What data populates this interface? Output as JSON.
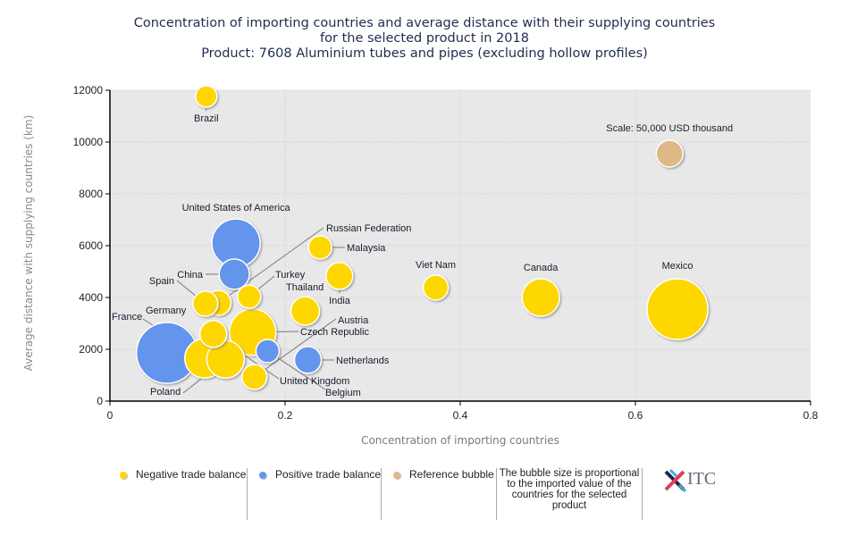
{
  "header": {
    "title_lines": [
      "Concentration of importing countries and average distance with their supplying countries",
      "for the selected product in 2018",
      "Product: 7608 Aluminium tubes and pipes (excluding hollow profiles)"
    ]
  },
  "colors": {
    "negative": "#FFD700",
    "positive": "#6495ED",
    "reference": "#DEB887",
    "plot_bg": "#E8E8E8"
  },
  "legend": {
    "negative_label": "Negative trade balance",
    "positive_label": "Positive trade balance",
    "reference_label": "Reference bubble",
    "note": "The bubble size is proportional to the imported value of the countries for the selected product",
    "logo_text": "ITC"
  },
  "chart_data": {
    "type": "scatter",
    "subtype": "bubble",
    "title": "Concentration of importing countries and average distance with their supplying countries for the selected product in 2018 — Product: 7608 Aluminium tubes and pipes (excluding hollow profiles)",
    "xlabel": "Concentration of importing countries",
    "ylabel": "Average distance with supplying countries (km)",
    "xlim": [
      0,
      0.8
    ],
    "ylim": [
      0,
      12000
    ],
    "xticks": [
      "0",
      "0.2",
      "0.4",
      "0.6",
      "0.8"
    ],
    "xtick_values": [
      0,
      0.2,
      0.4,
      0.6,
      0.8
    ],
    "yticks": [
      "0",
      "2000",
      "4000",
      "6000",
      "8000",
      "10000",
      "12000"
    ],
    "ytick_values": [
      0,
      2000,
      4000,
      6000,
      8000,
      10000,
      12000
    ],
    "grid": true,
    "legend_position": "bottom",
    "size_unit": "USD thousand (imported value, estimated from bubble area)",
    "reference": {
      "label": "Scale: 50,000 USD thousand",
      "x": 0.639,
      "y": 9550,
      "size": 50000
    },
    "points": [
      {
        "name": "Brazil",
        "x": 0.11,
        "y": 11760,
        "size": 32000,
        "balance": "negative",
        "label": "Brazil",
        "label_pos": "below"
      },
      {
        "name": "United States of America",
        "x": 0.144,
        "y": 6100,
        "size": 162000,
        "balance": "positive",
        "label": "United States of America",
        "label_pos": "above"
      },
      {
        "name": "China",
        "x": 0.142,
        "y": 4900,
        "size": 64000,
        "balance": "positive",
        "label": "China",
        "label_pos": "left-leader"
      },
      {
        "name": "Russian Federation",
        "x": 0.124,
        "y": 3790,
        "size": 43500,
        "balance": "negative",
        "label": "Russian Federation",
        "label_pos": "leader"
      },
      {
        "name": "Spain",
        "x": 0.109,
        "y": 3760,
        "size": 43500,
        "balance": "negative",
        "label": "Spain",
        "label_pos": "leader"
      },
      {
        "name": "Turkey",
        "x": 0.159,
        "y": 4030,
        "size": 37600,
        "balance": "negative",
        "label": "Turkey",
        "label_pos": "leader"
      },
      {
        "name": "Malaysia",
        "x": 0.24,
        "y": 5930,
        "size": 37600,
        "balance": "negative",
        "label": "Malaysia",
        "label_pos": "right-leader"
      },
      {
        "name": "India",
        "x": 0.262,
        "y": 4830,
        "size": 50000,
        "balance": "negative",
        "label": "India",
        "label_pos": "below-leader"
      },
      {
        "name": "Thailand",
        "x": 0.223,
        "y": 3480,
        "size": 57000,
        "balance": "negative",
        "label": "Thailand",
        "label_pos": "above"
      },
      {
        "name": "Viet Nam",
        "x": 0.372,
        "y": 4380,
        "size": 43500,
        "balance": "negative",
        "label": "Viet Nam",
        "label_pos": "above"
      },
      {
        "name": "Canada",
        "x": 0.492,
        "y": 4000,
        "size": 98000,
        "balance": "negative",
        "label": "Canada",
        "label_pos": "above"
      },
      {
        "name": "Mexico",
        "x": 0.648,
        "y": 3550,
        "size": 257000,
        "balance": "negative",
        "label": "Mexico",
        "label_pos": "above"
      },
      {
        "name": "Czech Republic",
        "x": 0.163,
        "y": 2660,
        "size": 150000,
        "balance": "negative",
        "label": "Czech Republic",
        "label_pos": "right-leader"
      },
      {
        "name": "Germany",
        "x": 0.065,
        "y": 1860,
        "size": 257000,
        "balance": "positive",
        "label": "Germany",
        "label_pos": "above"
      },
      {
        "name": "United Kingdom",
        "x": 0.118,
        "y": 2590,
        "size": 50000,
        "balance": "negative",
        "label": "United Kingdom",
        "label_pos": "leader"
      },
      {
        "name": "France",
        "x": 0.108,
        "y": 1650,
        "size": 108000,
        "balance": "negative",
        "label": "France",
        "label_pos": "leader"
      },
      {
        "name": "Poland",
        "x": 0.132,
        "y": 1610,
        "size": 98000,
        "balance": "negative",
        "label": "Poland",
        "label_pos": "leader"
      },
      {
        "name": "Belgium",
        "x": 0.18,
        "y": 1930,
        "size": 37600,
        "balance": "positive",
        "label": "Belgium",
        "label_pos": "leader"
      },
      {
        "name": "Austria",
        "x": 0.165,
        "y": 930,
        "size": 43500,
        "balance": "negative",
        "label": "Austria",
        "label_pos": "leader"
      },
      {
        "name": "Netherlands",
        "x": 0.226,
        "y": 1590,
        "size": 50000,
        "balance": "positive",
        "label": "Netherlands",
        "label_pos": "right-leader"
      }
    ]
  }
}
